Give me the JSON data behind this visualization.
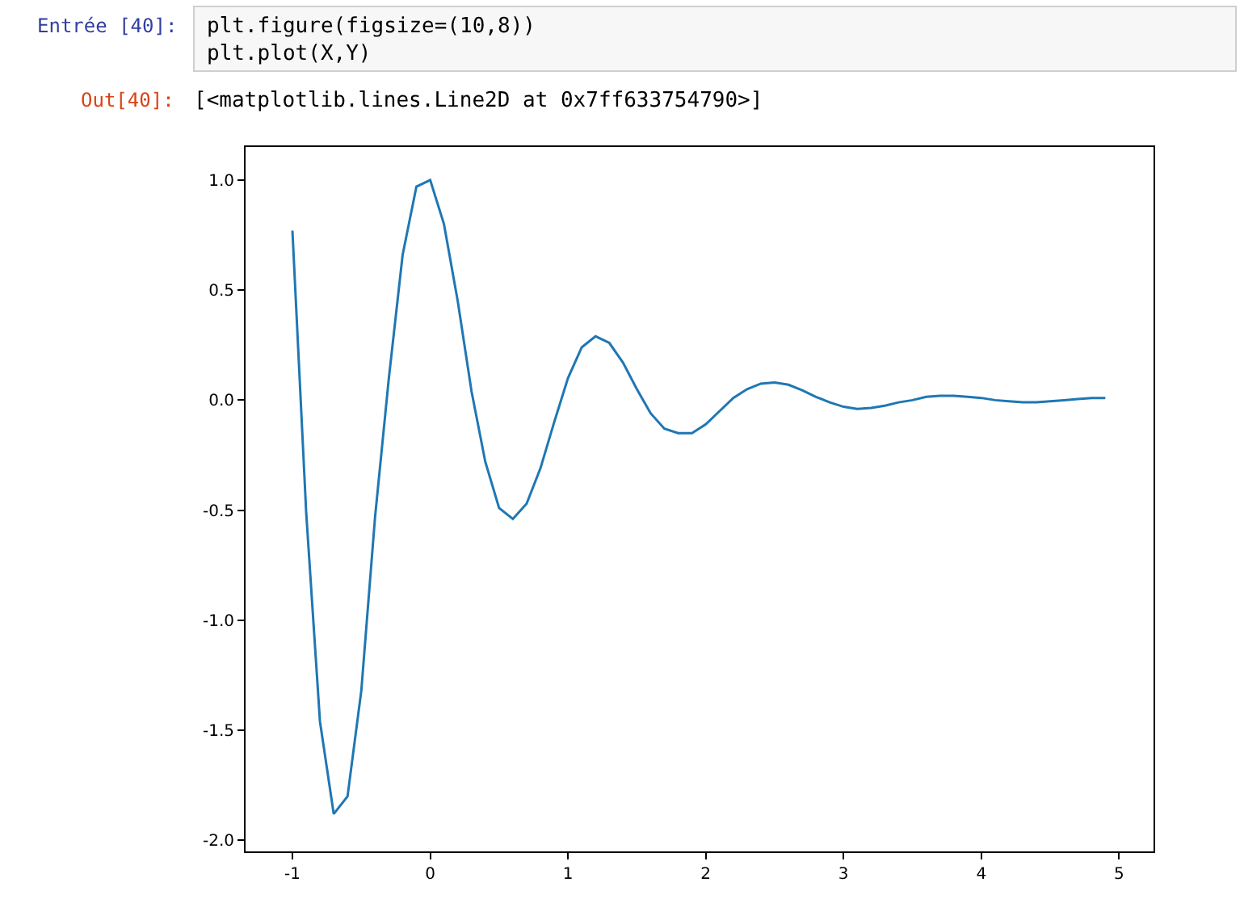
{
  "chart_data": {
    "type": "line",
    "x": [
      -1.0,
      -0.9,
      -0.8,
      -0.7,
      -0.6,
      -0.5,
      -0.4,
      -0.3,
      -0.2,
      -0.1,
      0.0,
      0.1,
      0.2,
      0.3,
      0.4,
      0.5,
      0.6,
      0.7,
      0.8,
      0.9,
      1.0,
      1.1,
      1.2,
      1.3,
      1.4,
      1.5,
      1.6,
      1.7,
      1.8,
      1.9,
      2.0,
      2.1,
      2.2,
      2.3,
      2.4,
      2.5,
      2.6,
      2.7,
      2.8,
      2.9,
      3.0,
      3.1,
      3.2,
      3.3,
      3.4,
      3.5,
      3.6,
      3.7,
      3.8,
      3.9,
      4.0,
      4.1,
      4.2,
      4.3,
      4.4,
      4.5,
      4.6,
      4.7,
      4.8,
      4.9
    ],
    "series": [
      {
        "color": "#1f77b4",
        "values": [
          0.77,
          -0.51,
          -1.46,
          -1.88,
          -1.8,
          -1.32,
          -0.53,
          0.1,
          0.66,
          0.97,
          1.0,
          0.8,
          0.45,
          0.04,
          -0.28,
          -0.49,
          -0.54,
          -0.47,
          -0.31,
          -0.1,
          0.1,
          0.24,
          0.29,
          0.26,
          0.17,
          0.05,
          -0.06,
          -0.13,
          -0.15,
          -0.15,
          -0.11,
          -0.05,
          0.01,
          0.05,
          0.075,
          0.08,
          0.07,
          0.045,
          0.015,
          -0.01,
          -0.03,
          -0.04,
          -0.035,
          -0.025,
          -0.01,
          0.0,
          0.015,
          0.02,
          0.02,
          0.015,
          0.01,
          0.0,
          -0.005,
          -0.01,
          -0.01,
          -0.005,
          0.0,
          0.005,
          0.01,
          0.01
        ]
      }
    ],
    "xlim": [
      -1.34,
      5.25
    ],
    "xticks": [
      -1,
      0,
      1,
      2,
      3,
      4,
      5
    ],
    "ylim": [
      -2.05,
      1.15
    ],
    "yticks": [
      {
        "value": -2,
        "label": "-2.0"
      },
      {
        "value": -1.5,
        "label": "-1.5"
      },
      {
        "value": -1,
        "label": "-1.0"
      },
      {
        "value": -0.5,
        "label": "-0.5"
      },
      {
        "value": 0,
        "label": "0.0"
      },
      {
        "value": 0.5,
        "label": "0.5"
      },
      {
        "value": 1,
        "label": "1.0"
      }
    ],
    "legend": false,
    "line_style": "solid",
    "marker": "none",
    "annotations": [
      "Entrée [40]:",
      "plt.figure(figsize=(10,8))",
      "plt.plot(X,Y)",
      "Out[40]:",
      "[<matplotlib.lines.Line2D at 0x7ff633754790>]"
    ]
  }
}
